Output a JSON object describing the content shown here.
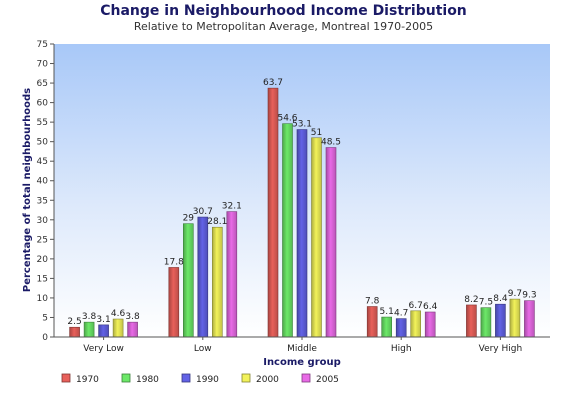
{
  "chart_data": {
    "type": "bar",
    "title": "Change in Neighbourhood Income Distribution",
    "subtitle": "Relative to Metropolitan Average, Montreal 1970-2005",
    "xlabel": "Income group",
    "ylabel": "Percentage of total neighbourhoods",
    "ylim": [
      0,
      75
    ],
    "yticks": [
      0,
      5,
      10,
      15,
      20,
      25,
      30,
      35,
      40,
      45,
      50,
      55,
      60,
      65,
      70,
      75
    ],
    "grid": false,
    "legend_position": "bottom-left",
    "categories": [
      "Very Low",
      "Low",
      "Middle",
      "High",
      "Very High"
    ],
    "series": [
      {
        "name": "1970",
        "color": "#e8605a",
        "values": [
          2.5,
          17.8,
          63.7,
          7.8,
          8.2
        ]
      },
      {
        "name": "1980",
        "color": "#6ce868",
        "values": [
          3.8,
          29,
          54.6,
          5.1,
          7.5
        ]
      },
      {
        "name": "1990",
        "color": "#6262e6",
        "values": [
          3.1,
          30.7,
          53.1,
          4.7,
          8.4
        ]
      },
      {
        "name": "2000",
        "color": "#f2f25a",
        "values": [
          4.6,
          28.1,
          51,
          6.7,
          9.7
        ]
      },
      {
        "name": "2005",
        "color": "#e86ae6",
        "values": [
          3.8,
          32.1,
          48.5,
          6.4,
          9.3
        ]
      }
    ]
  }
}
